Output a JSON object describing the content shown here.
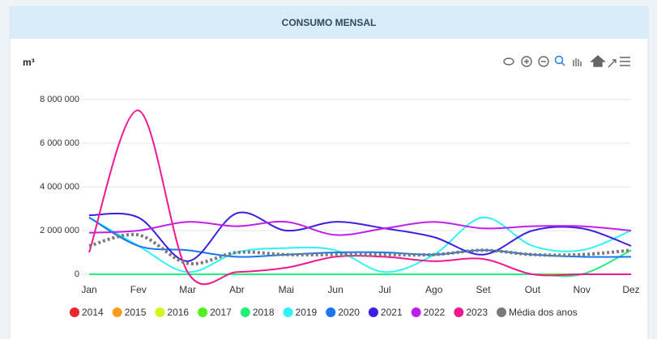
{
  "header": {
    "title": "CONSUMO MENSAL"
  },
  "chart_data": {
    "type": "line",
    "ylabel": "m³",
    "categories": [
      "Jan",
      "Fev",
      "Mar",
      "Abr",
      "Mai",
      "Jun",
      "Jul",
      "Ago",
      "Set",
      "Out",
      "Nov",
      "Dez"
    ],
    "ylim": [
      0,
      8000000
    ],
    "yticks": [
      {
        "value": 0,
        "label": "0"
      },
      {
        "value": 2000000,
        "label": "2 000 000"
      },
      {
        "value": 4000000,
        "label": "4 000 000"
      },
      {
        "value": 6000000,
        "label": "6 000 000"
      },
      {
        "value": 8000000,
        "label": "8 000 000"
      }
    ],
    "grid": true,
    "smooth": true,
    "legend": "bottom",
    "series": [
      {
        "name": "2014",
        "color": "#e8262b",
        "values": [
          0,
          0,
          0,
          0,
          0,
          0,
          0,
          0,
          0,
          0,
          0,
          0
        ]
      },
      {
        "name": "2015",
        "color": "#ff9a1a",
        "values": [
          0,
          0,
          0,
          0,
          0,
          0,
          0,
          0,
          0,
          0,
          0,
          0
        ]
      },
      {
        "name": "2016",
        "color": "#d4f51b",
        "values": [
          0,
          0,
          0,
          0,
          0,
          0,
          0,
          0,
          0,
          0,
          0,
          0
        ]
      },
      {
        "name": "2017",
        "color": "#52f01c",
        "values": [
          0,
          0,
          0,
          0,
          0,
          0,
          0,
          0,
          0,
          0,
          0,
          0
        ]
      },
      {
        "name": "2018",
        "color": "#1ef07a",
        "values": [
          0,
          0,
          0,
          0,
          0,
          0,
          0,
          0,
          0,
          0,
          0,
          1100000
        ]
      },
      {
        "name": "2019",
        "color": "#2ef2f7",
        "values": [
          2600000,
          1300000,
          100000,
          1000000,
          1200000,
          1100000,
          100000,
          900000,
          2600000,
          1300000,
          1100000,
          2000000
        ]
      },
      {
        "name": "2020",
        "color": "#1677f0",
        "values": [
          2600000,
          1300000,
          1100000,
          800000,
          900000,
          1000000,
          1000000,
          900000,
          1100000,
          900000,
          800000,
          800000
        ]
      },
      {
        "name": "2021",
        "color": "#3b1ee0",
        "values": [
          2700000,
          2600000,
          600000,
          2800000,
          2000000,
          2400000,
          2100000,
          1700000,
          900000,
          2000000,
          2100000,
          1300000
        ]
      },
      {
        "name": "2022",
        "color": "#bf1fee",
        "values": [
          1900000,
          2000000,
          2400000,
          2200000,
          2400000,
          1800000,
          2100000,
          2400000,
          2100000,
          2200000,
          2200000,
          2000000
        ]
      },
      {
        "name": "2023",
        "color": "#f0178f",
        "values": [
          1000000,
          7500000,
          100000,
          100000,
          300000,
          800000,
          800000,
          600000,
          700000,
          0,
          0,
          0
        ]
      },
      {
        "name": "Média dos anos",
        "color": "#7a7a7a",
        "dashed": true,
        "values": [
          1300000,
          1800000,
          500000,
          1000000,
          900000,
          900000,
          900000,
          900000,
          1100000,
          900000,
          900000,
          1100000
        ]
      }
    ]
  }
}
